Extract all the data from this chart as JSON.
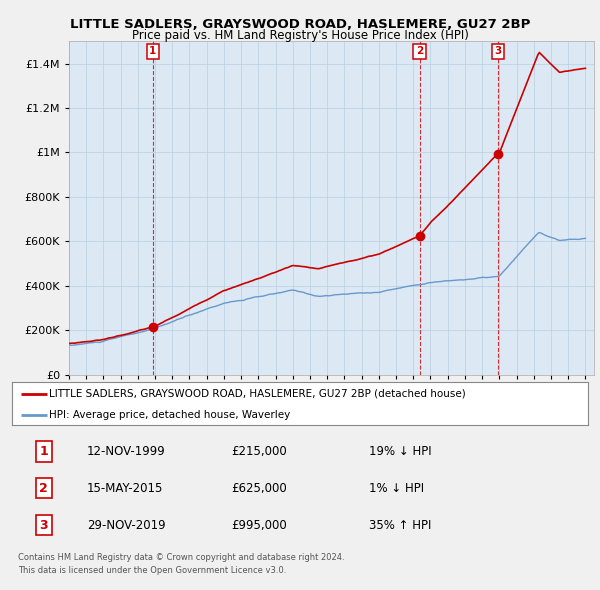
{
  "title": "LITTLE SADLERS, GRAYSWOOD ROAD, HASLEMERE, GU27 2BP",
  "subtitle": "Price paid vs. HM Land Registry's House Price Index (HPI)",
  "legend_line1": "LITTLE SADLERS, GRAYSWOOD ROAD, HASLEMERE, GU27 2BP (detached house)",
  "legend_line2": "HPI: Average price, detached house, Waverley",
  "footnote1": "Contains HM Land Registry data © Crown copyright and database right 2024.",
  "footnote2": "This data is licensed under the Open Government Licence v3.0.",
  "sale_labels": [
    "1",
    "2",
    "3"
  ],
  "sale_dates": [
    "12-NOV-1999",
    "15-MAY-2015",
    "29-NOV-2019"
  ],
  "sale_prices": [
    215000,
    625000,
    995000
  ],
  "sale_hpi_diff": [
    "19% ↓ HPI",
    "1% ↓ HPI",
    "35% ↑ HPI"
  ],
  "price_paid_color": "#cc0000",
  "hpi_color": "#6699cc",
  "background_color": "#f0f0f0",
  "plot_bg_color": "#dce9f5",
  "grid_color": "#b8cfe0",
  "ylim": [
    0,
    1500000
  ],
  "sale1_x": 1999.87,
  "sale2_x": 2015.37,
  "sale3_x": 2019.91
}
